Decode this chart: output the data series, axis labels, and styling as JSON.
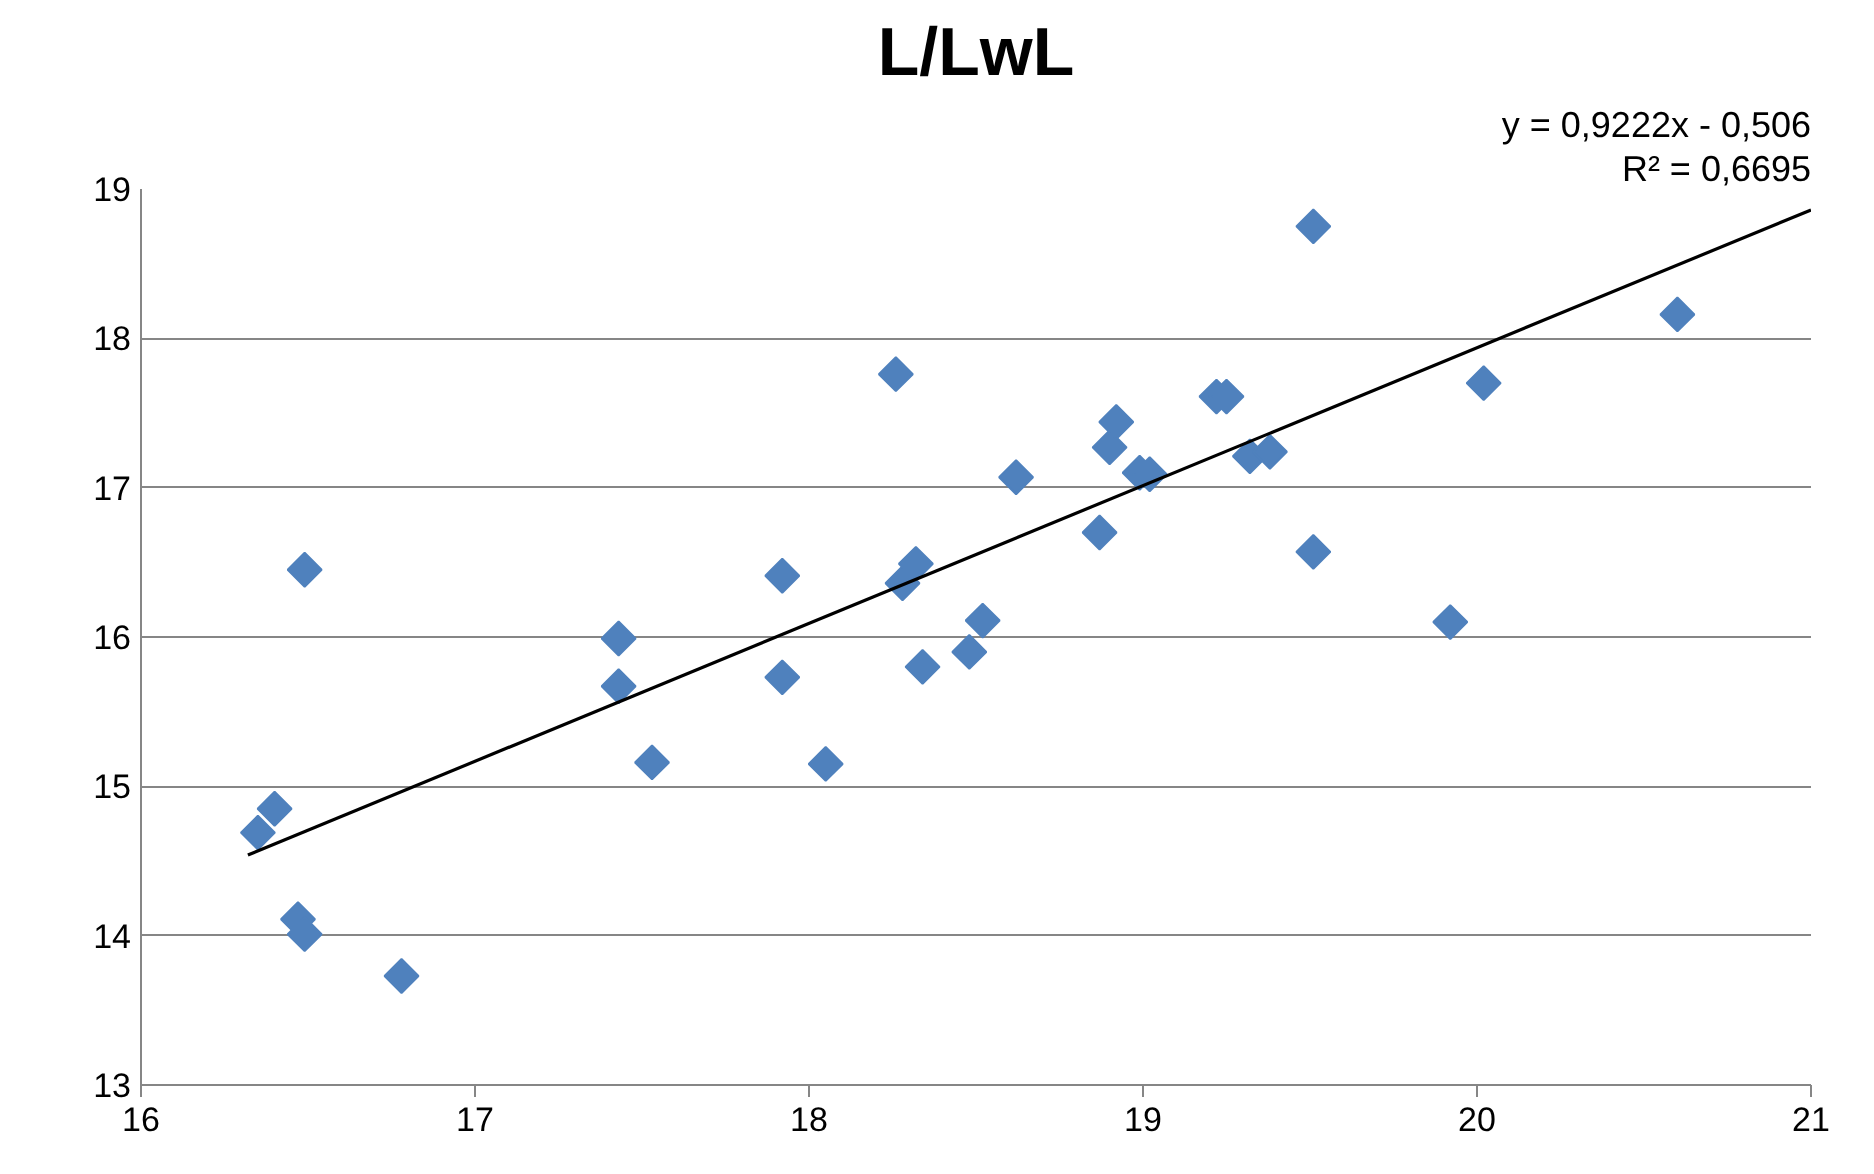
{
  "chart_data": {
    "type": "scatter",
    "title": "L/LwL",
    "annotations": [
      "y = 0,9222x - 0,506",
      "R² = 0,6695"
    ],
    "xlim": [
      16,
      21
    ],
    "xticks": [
      16,
      17,
      18,
      19,
      20,
      21
    ],
    "ylim": [
      13,
      19
    ],
    "yticks": [
      13,
      14,
      15,
      16,
      17,
      18,
      19
    ],
    "grid": "y",
    "marker": "diamond",
    "series": [
      {
        "color": "#4f81bd",
        "x": [
          16.35,
          16.4,
          16.49,
          16.47,
          16.49,
          16.78,
          17.43,
          17.43,
          17.53,
          17.92,
          17.92,
          18.05,
          18.26,
          18.28,
          18.32,
          18.34,
          18.48,
          18.52,
          18.62,
          18.87,
          18.9,
          18.92,
          18.99,
          19.02,
          19.22,
          19.25,
          19.32,
          19.38,
          19.51,
          19.51,
          19.92,
          20.02,
          20.6
        ],
        "values": [
          14.69,
          14.85,
          16.45,
          14.11,
          14.01,
          13.73,
          15.99,
          15.67,
          15.16,
          16.41,
          15.73,
          15.15,
          17.76,
          16.36,
          16.49,
          15.8,
          15.9,
          16.11,
          17.07,
          16.7,
          17.27,
          17.44,
          17.1,
          17.09,
          17.61,
          17.61,
          17.21,
          17.24,
          18.75,
          16.57,
          16.1,
          17.7,
          18.16
        ]
      },
      {
        "type": "line",
        "marker": "none",
        "color": "#000000",
        "x": [
          16.32,
          21
        ],
        "values": [
          14.54,
          18.86
        ]
      }
    ]
  }
}
